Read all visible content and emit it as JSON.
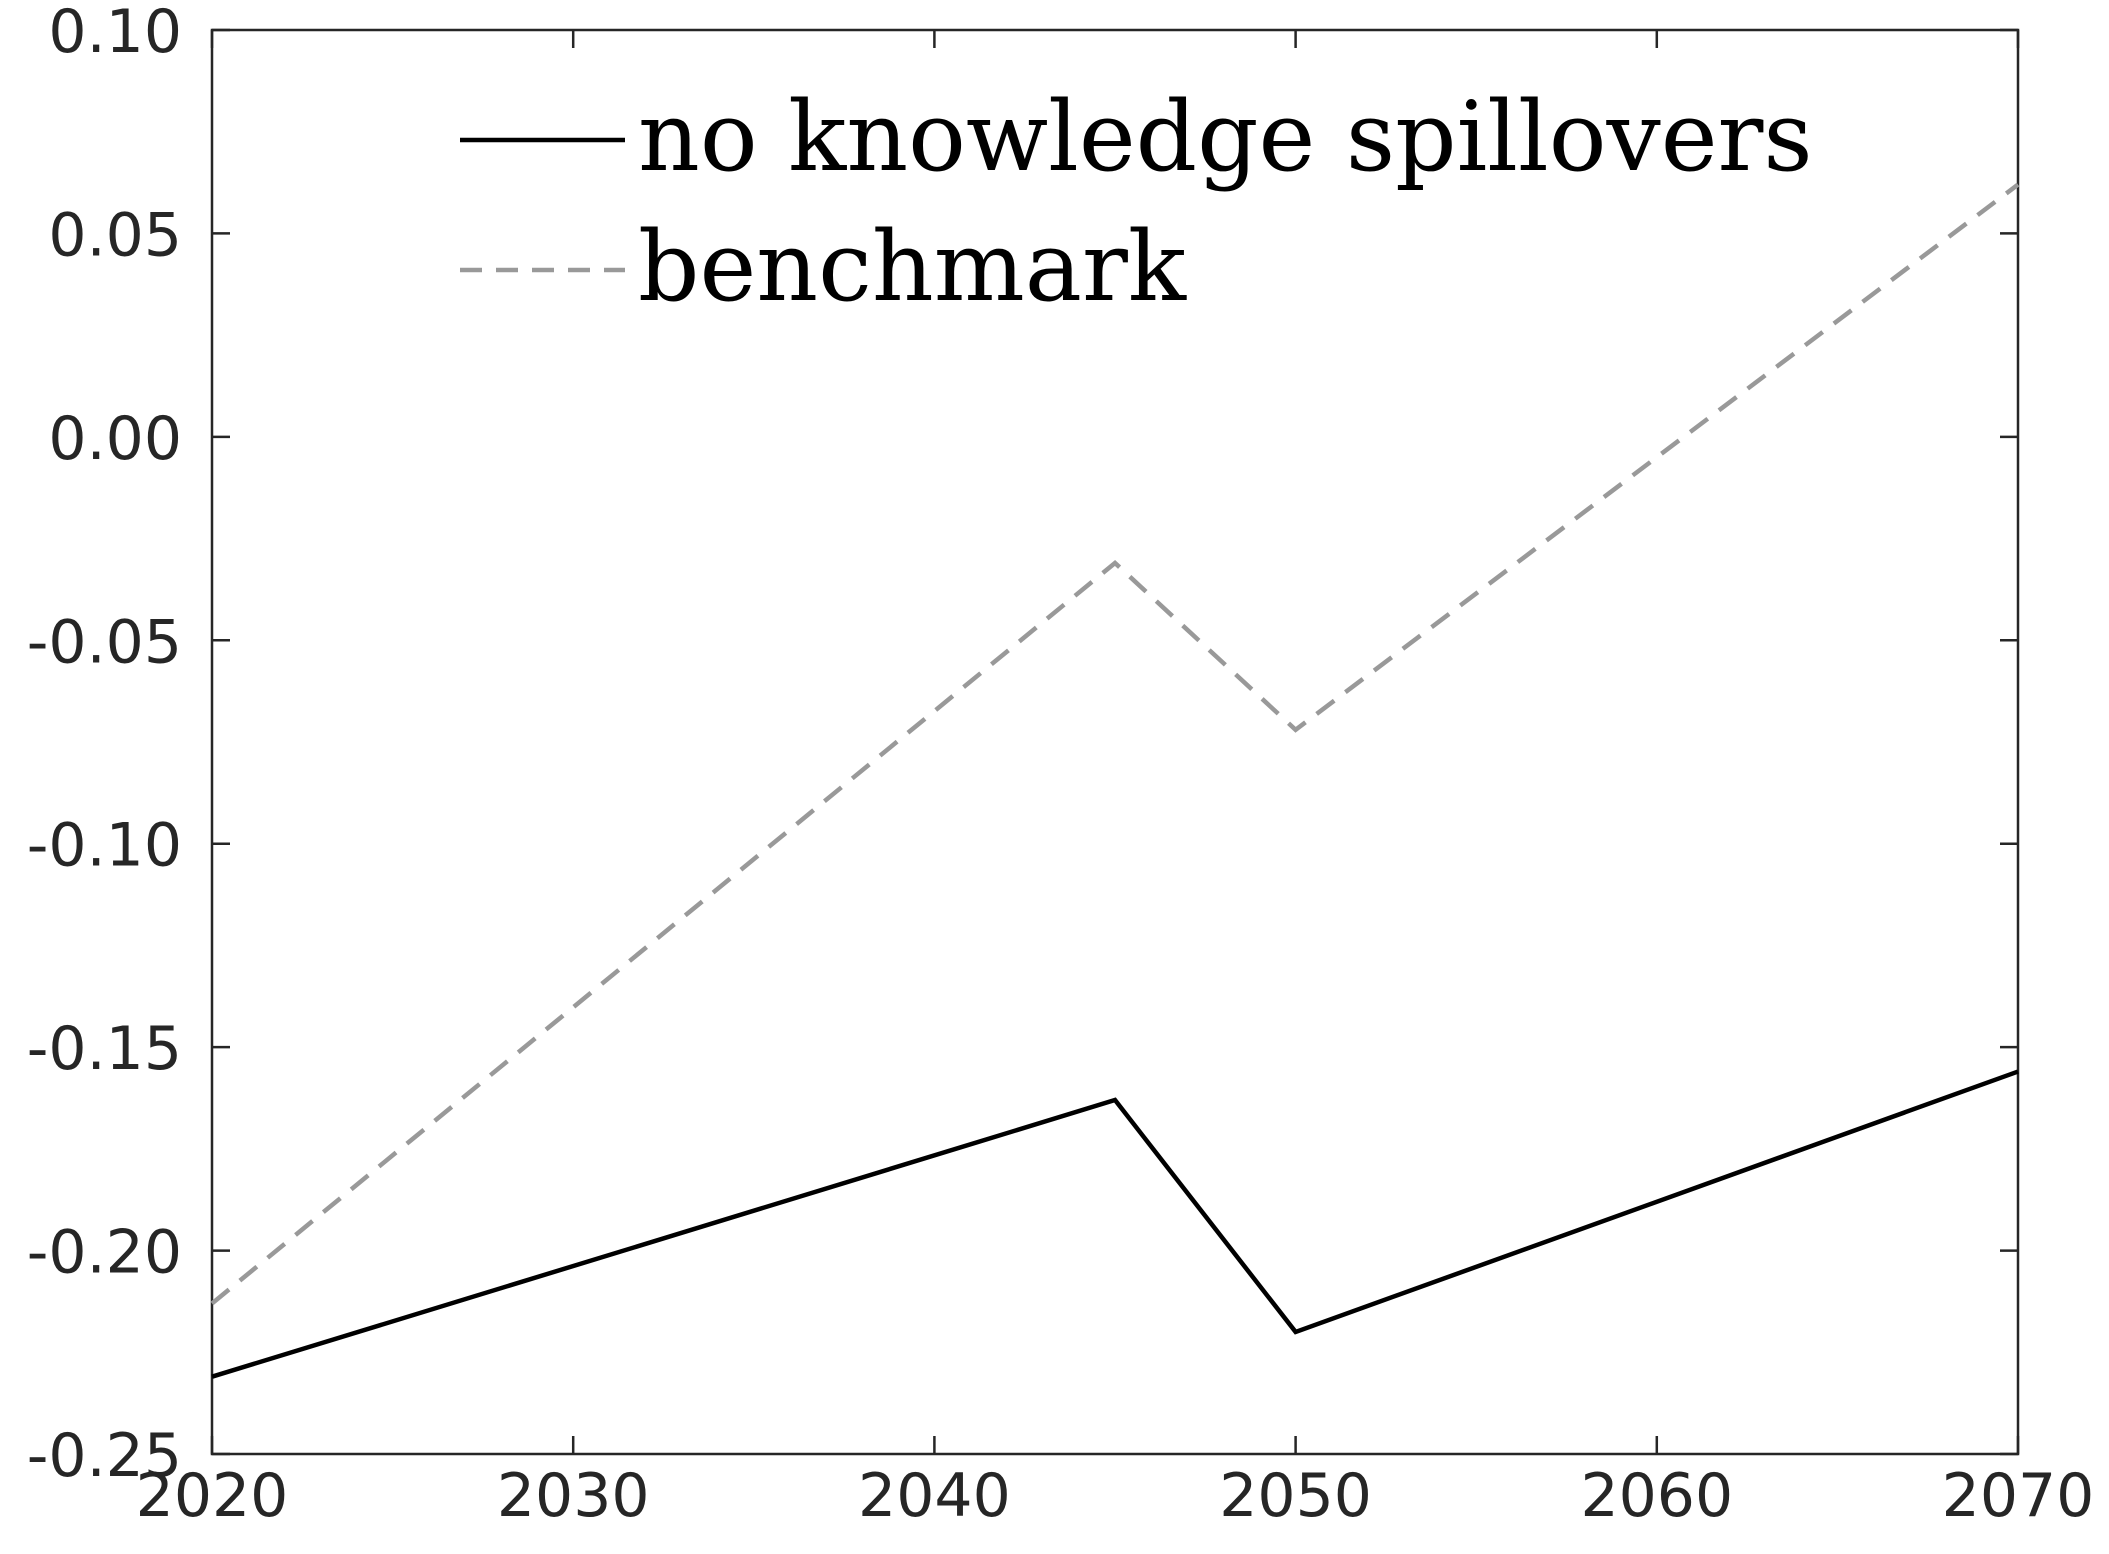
{
  "chart_data": {
    "type": "line",
    "x": [
      2020,
      2045,
      2050,
      2070
    ],
    "series": [
      {
        "name": "no knowledge spillovers",
        "values": [
          -0.231,
          -0.163,
          -0.22,
          -0.156
        ],
        "color": "#000000",
        "dash": "solid"
      },
      {
        "name": "benchmark",
        "values": [
          -0.213,
          -0.031,
          -0.072,
          0.062
        ],
        "color": "#999999",
        "dash": "dashed"
      }
    ],
    "xlim": [
      2020,
      2070
    ],
    "ylim": [
      -0.25,
      0.1
    ],
    "xticks": [
      2020,
      2030,
      2040,
      2050,
      2060,
      2070
    ],
    "yticks": [
      0.1,
      0.05,
      0.0,
      -0.05,
      -0.1,
      -0.15,
      -0.2,
      -0.25
    ],
    "xtick_labels": [
      "2020",
      "2030",
      "2040",
      "2050",
      "2060",
      "2070"
    ],
    "ytick_labels": [
      "0.10",
      "0.05",
      "0.00",
      "-0.05",
      "-0.10",
      "-0.15",
      "-0.20",
      "-0.25"
    ],
    "grid": false,
    "legend_position": "top-center"
  }
}
